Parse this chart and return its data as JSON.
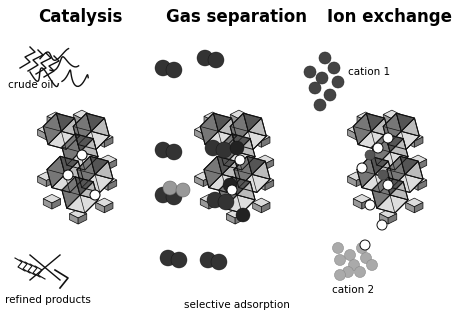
{
  "panel_titles": [
    "Catalysis",
    "Gas separation",
    "Ion exchange"
  ],
  "panel_title_fontsize": 12,
  "panel_title_fontweight": "bold",
  "bg_color": "#ffffff",
  "zeolite_color_darkest": "#555555",
  "zeolite_color_dark": "#777777",
  "zeolite_color_mid": "#999999",
  "zeolite_color_light": "#bbbbbb",
  "zeolite_color_lightest": "#dddddd",
  "line_color": "#111111",
  "dark_dot_color": "#333333",
  "med_dot_color": "#888888",
  "light_dot_color": "#aaaaaa"
}
